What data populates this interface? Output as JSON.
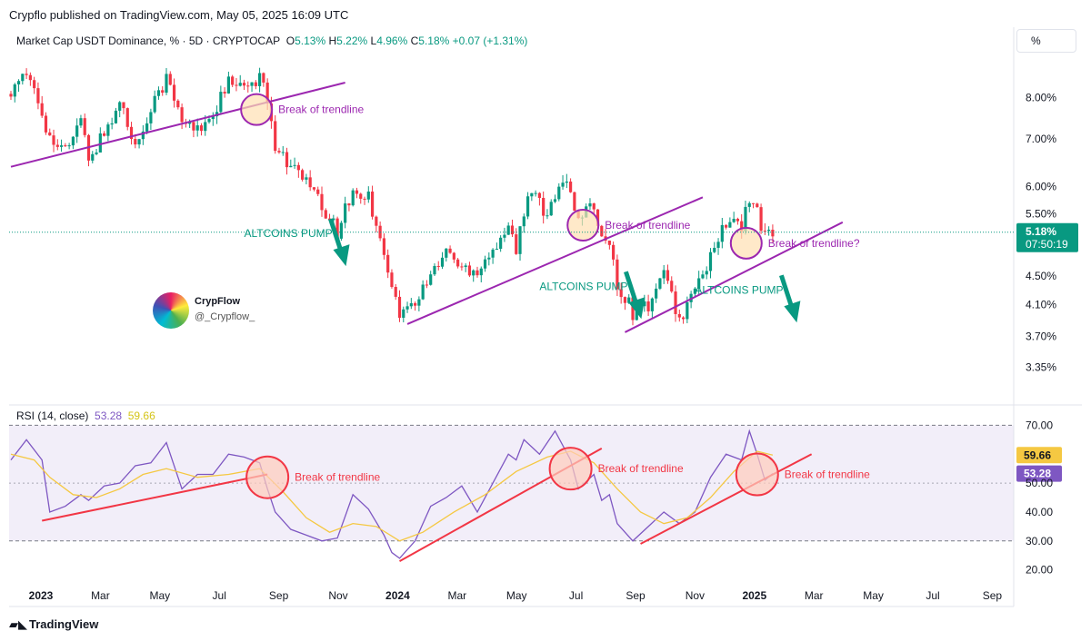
{
  "header": {
    "attribution": "Crypflo published on TradingView.com, May 05, 2025 16:09 UTC",
    "symbol": "Market Cap USDT Dominance, % · 5D · CRYPTOCAP",
    "ohlc": {
      "o_label": "O",
      "o": "5.13%",
      "h_label": "H",
      "h": "5.22%",
      "l_label": "L",
      "l": "4.96%",
      "c_label": "C",
      "c": "5.18%",
      "change": "+0.07 (+1.31%)"
    },
    "scale_button": "%"
  },
  "author": {
    "name": "CrypFlow",
    "handle": "@_Crypflow_"
  },
  "footer": {
    "brand": "TradingView"
  },
  "colors": {
    "up": "#089981",
    "down": "#f23645",
    "trendline": "#9c27b0",
    "rsi_line": "#7e57c2",
    "rsi_ma": "#f5c842",
    "rsi_trend": "#f23645",
    "annotation_green": "#089981"
  },
  "chart_data": [
    {
      "type": "candlestick",
      "title": "Market Cap USDT Dominance, % · 5D · CRYPTOCAP",
      "y_scale": "log",
      "y_ticks": [
        "8.00%",
        "7.00%",
        "6.00%",
        "5.50%",
        "4.50%",
        "4.10%",
        "3.70%",
        "3.35%"
      ],
      "ylim": [
        3.2,
        9.2
      ],
      "x_ticks": [
        "2023",
        "Mar",
        "May",
        "Jul",
        "Sep",
        "Nov",
        "2024",
        "Mar",
        "May",
        "Jul",
        "Sep",
        "Nov",
        "2025",
        "Mar",
        "May",
        "Jul",
        "Sep"
      ],
      "last_price": {
        "value": 5.18,
        "label": "5.18%",
        "countdown": "07:50:19"
      },
      "close_path": [
        [
          0,
          8.1
        ],
        [
          2,
          8.6
        ],
        [
          3,
          8.3
        ],
        [
          5,
          7.0
        ],
        [
          7,
          6.7
        ],
        [
          9,
          7.4
        ],
        [
          10,
          6.6
        ],
        [
          12,
          7.1
        ],
        [
          14,
          7.9
        ],
        [
          16,
          6.8
        ],
        [
          18,
          7.8
        ],
        [
          20,
          8.5
        ],
        [
          22,
          7.4
        ],
        [
          24,
          7.2
        ],
        [
          26,
          7.6
        ],
        [
          28,
          8.4
        ],
        [
          30,
          8.2
        ],
        [
          32,
          8.5
        ],
        [
          33,
          7.9
        ],
        [
          34,
          6.9
        ],
        [
          36,
          6.4
        ],
        [
          38,
          6.1
        ],
        [
          40,
          5.6
        ],
        [
          42,
          5.2
        ],
        [
          44,
          5.9
        ],
        [
          46,
          5.8
        ],
        [
          48,
          4.9
        ],
        [
          49,
          4.3
        ],
        [
          50,
          4.0
        ],
        [
          52,
          4.1
        ],
        [
          54,
          4.5
        ],
        [
          56,
          4.9
        ],
        [
          58,
          4.6
        ],
        [
          60,
          4.6
        ],
        [
          62,
          4.9
        ],
        [
          64,
          5.3
        ],
        [
          65,
          4.9
        ],
        [
          66,
          5.5
        ],
        [
          67,
          5.9
        ],
        [
          69,
          5.5
        ],
        [
          70,
          5.9
        ],
        [
          71,
          6.2
        ],
        [
          72,
          5.8
        ],
        [
          73,
          5.4
        ],
        [
          75,
          5.6
        ],
        [
          76,
          5.2
        ],
        [
          77,
          5.0
        ],
        [
          78,
          4.4
        ],
        [
          80,
          4.0
        ],
        [
          82,
          4.1
        ],
        [
          84,
          4.5
        ],
        [
          86,
          3.9
        ],
        [
          87,
          4.1
        ],
        [
          89,
          4.5
        ],
        [
          91,
          5.1
        ],
        [
          93,
          5.4
        ],
        [
          94,
          5.2
        ],
        [
          95,
          5.8
        ],
        [
          96,
          5.5
        ],
        [
          97,
          5.1
        ],
        [
          98,
          5.18
        ]
      ],
      "trendlines": [
        {
          "from": [
            0,
            6.4
          ],
          "to": [
            43,
            8.4
          ]
        },
        {
          "from": [
            51,
            3.85
          ],
          "to": [
            89,
            5.8
          ]
        },
        {
          "from": [
            79,
            3.75
          ],
          "to": [
            107,
            5.35
          ]
        }
      ],
      "annotations": [
        {
          "text": "Break of trendline",
          "at": [
            33,
            7.7
          ],
          "color": "#9c27b0"
        },
        {
          "text": "Break of trendline",
          "at": [
            75,
            5.3
          ],
          "color": "#9c27b0"
        },
        {
          "text": "Break of trendline?",
          "at": [
            96,
            5.0
          ],
          "color": "#9c27b0"
        },
        {
          "text": "ALTCOINS PUMP",
          "at": [
            30,
            5.1
          ],
          "color": "#089981"
        },
        {
          "text": "ALTCOINS PUMP",
          "at": [
            68,
            4.3
          ],
          "color": "#089981"
        },
        {
          "text": "ALTCOINS PUMP",
          "at": [
            88,
            4.25
          ],
          "color": "#089981"
        }
      ]
    },
    {
      "type": "line",
      "title": "RSI (14, close)",
      "value_labels": [
        "53.28",
        "59.66"
      ],
      "series": [
        {
          "name": "RSI (14, close)",
          "current": 53.28
        },
        {
          "name": "RSI MA",
          "current": 59.66
        }
      ],
      "y_ticks": [
        "70.00",
        "50.00",
        "40.00",
        "30.00",
        "20.00"
      ],
      "bands": [
        30,
        70
      ],
      "ylim": [
        18,
        72
      ],
      "rsi_path": [
        [
          0,
          58
        ],
        [
          2,
          65
        ],
        [
          4,
          58
        ],
        [
          5,
          40
        ],
        [
          7,
          42
        ],
        [
          9,
          46
        ],
        [
          10,
          44
        ],
        [
          12,
          49
        ],
        [
          14,
          50
        ],
        [
          16,
          56
        ],
        [
          18,
          57
        ],
        [
          20,
          64
        ],
        [
          22,
          48
        ],
        [
          24,
          53
        ],
        [
          26,
          53
        ],
        [
          28,
          60
        ],
        [
          30,
          59
        ],
        [
          32,
          57
        ],
        [
          33,
          48
        ],
        [
          34,
          40
        ],
        [
          36,
          34
        ],
        [
          38,
          32
        ],
        [
          40,
          30
        ],
        [
          42,
          31
        ],
        [
          44,
          46
        ],
        [
          46,
          41
        ],
        [
          48,
          32
        ],
        [
          49,
          26
        ],
        [
          50,
          24
        ],
        [
          52,
          30
        ],
        [
          54,
          42
        ],
        [
          56,
          45
        ],
        [
          58,
          49
        ],
        [
          60,
          40
        ],
        [
          62,
          50
        ],
        [
          64,
          60
        ],
        [
          65,
          58
        ],
        [
          66,
          65
        ],
        [
          68,
          60
        ],
        [
          70,
          68
        ],
        [
          72,
          58
        ],
        [
          73,
          48
        ],
        [
          75,
          53
        ],
        [
          76,
          44
        ],
        [
          77,
          46
        ],
        [
          78,
          36
        ],
        [
          80,
          30
        ],
        [
          82,
          35
        ],
        [
          84,
          40
        ],
        [
          86,
          36
        ],
        [
          88,
          40
        ],
        [
          90,
          52
        ],
        [
          92,
          60
        ],
        [
          94,
          58
        ],
        [
          95,
          68
        ],
        [
          96,
          60
        ],
        [
          97,
          51
        ],
        [
          98,
          53.28
        ]
      ],
      "ma_path": [
        [
          0,
          60
        ],
        [
          3,
          58
        ],
        [
          5,
          52
        ],
        [
          8,
          46
        ],
        [
          11,
          45
        ],
        [
          14,
          48
        ],
        [
          17,
          53
        ],
        [
          20,
          55
        ],
        [
          24,
          52
        ],
        [
          28,
          53
        ],
        [
          32,
          55
        ],
        [
          35,
          47
        ],
        [
          38,
          38
        ],
        [
          41,
          33
        ],
        [
          44,
          36
        ],
        [
          47,
          35
        ],
        [
          50,
          30
        ],
        [
          53,
          33
        ],
        [
          57,
          40
        ],
        [
          61,
          46
        ],
        [
          65,
          54
        ],
        [
          69,
          59
        ],
        [
          72,
          61
        ],
        [
          75,
          57
        ],
        [
          78,
          48
        ],
        [
          81,
          40
        ],
        [
          84,
          36
        ],
        [
          87,
          38
        ],
        [
          90,
          45
        ],
        [
          93,
          54
        ],
        [
          96,
          61
        ],
        [
          98,
          59.66
        ]
      ],
      "trendlines": [
        {
          "from": [
            4,
            37
          ],
          "to": [
            33,
            53
          ]
        },
        {
          "from": [
            50,
            23
          ],
          "to": [
            76,
            62
          ]
        },
        {
          "from": [
            81,
            29
          ],
          "to": [
            103,
            60
          ]
        }
      ],
      "annotations": [
        {
          "text": "Break of trendline",
          "at": [
            33,
            52
          ],
          "color": "#f23645"
        },
        {
          "text": "Break of trendline",
          "at": [
            72,
            55
          ],
          "color": "#f23645"
        },
        {
          "text": "Break of trendline",
          "at": [
            96,
            53
          ],
          "color": "#f23645"
        }
      ]
    }
  ]
}
